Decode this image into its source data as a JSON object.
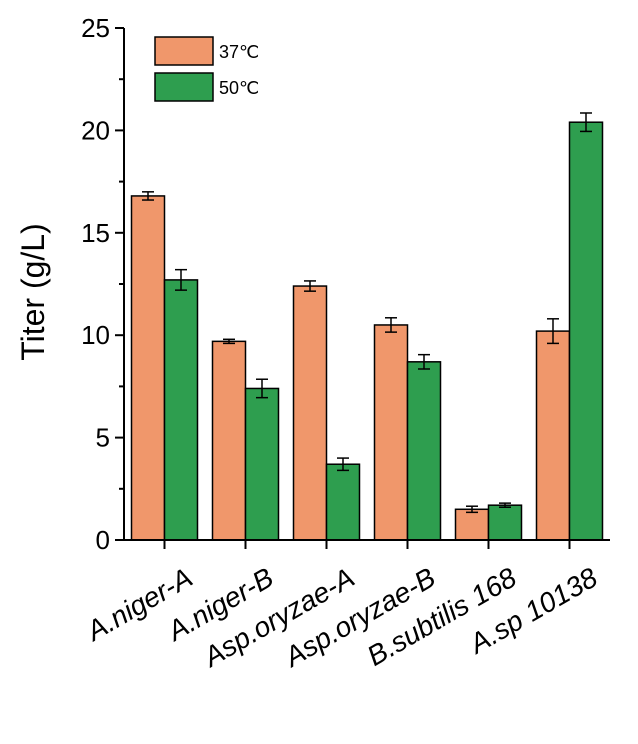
{
  "chart_data": {
    "type": "bar",
    "title": "",
    "xlabel": "",
    "ylabel": "Titer (g/L)",
    "ylim": [
      0,
      25
    ],
    "yticks": [
      "0",
      "5",
      "10",
      "15",
      "20",
      "25"
    ],
    "grid": false,
    "legend_position": "top-left",
    "categories": [
      "A.niger-A",
      "A.niger-B",
      "Asp.oryzae-A",
      "Asp.oryzae-B",
      "B.subtilis 168",
      "A.sp 10138"
    ],
    "series": [
      {
        "name": "37℃",
        "color": "#F0976B",
        "values": [
          16.8,
          9.7,
          12.4,
          10.5,
          1.5,
          10.2
        ],
        "errors": [
          0.2,
          0.1,
          0.25,
          0.35,
          0.15,
          0.6
        ]
      },
      {
        "name": "50℃",
        "color": "#2E9E4F",
        "values": [
          12.7,
          7.4,
          3.7,
          8.7,
          1.7,
          20.4
        ],
        "errors": [
          0.5,
          0.45,
          0.3,
          0.35,
          0.1,
          0.45
        ]
      }
    ]
  }
}
